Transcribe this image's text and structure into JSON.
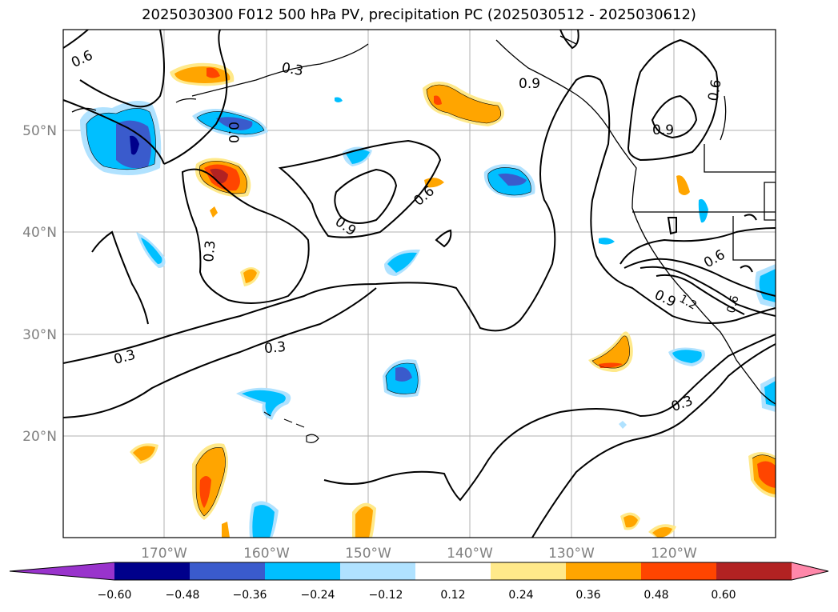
{
  "title": "2025030300 F012 500 hPa PV, precipitation PC (2025030512 - 2025030612)",
  "map": {
    "lat_labels": [
      "50°N",
      "40°N",
      "30°N",
      "20°N"
    ],
    "lon_labels": [
      "170°W",
      "160°W",
      "150°W",
      "140°W",
      "130°W",
      "120°W"
    ],
    "contour_labels": [
      "0.6",
      "0.3",
      "0.0",
      "0.9",
      "0.6",
      "0.3",
      "0.9",
      "0.3",
      "0.3",
      "0.6",
      "0.6",
      "0.9",
      "1.2",
      "0.3",
      "0.6",
      "0.9"
    ],
    "label_color": "#808080",
    "gridline_color": "#b0b0b0"
  },
  "colorbar": {
    "ticks": [
      "−0.60",
      "−0.48",
      "−0.36",
      "−0.24",
      "−0.12",
      "0.12",
      "0.24",
      "0.36",
      "0.48",
      "0.60"
    ],
    "colors": [
      "#9933cc",
      "#00008b",
      "#3a5bcc",
      "#00bfff",
      "#b0e2ff",
      "#ffffff",
      "#ffe98a",
      "#ffa500",
      "#ff4500",
      "#b22222",
      "#ff88aa"
    ]
  }
}
